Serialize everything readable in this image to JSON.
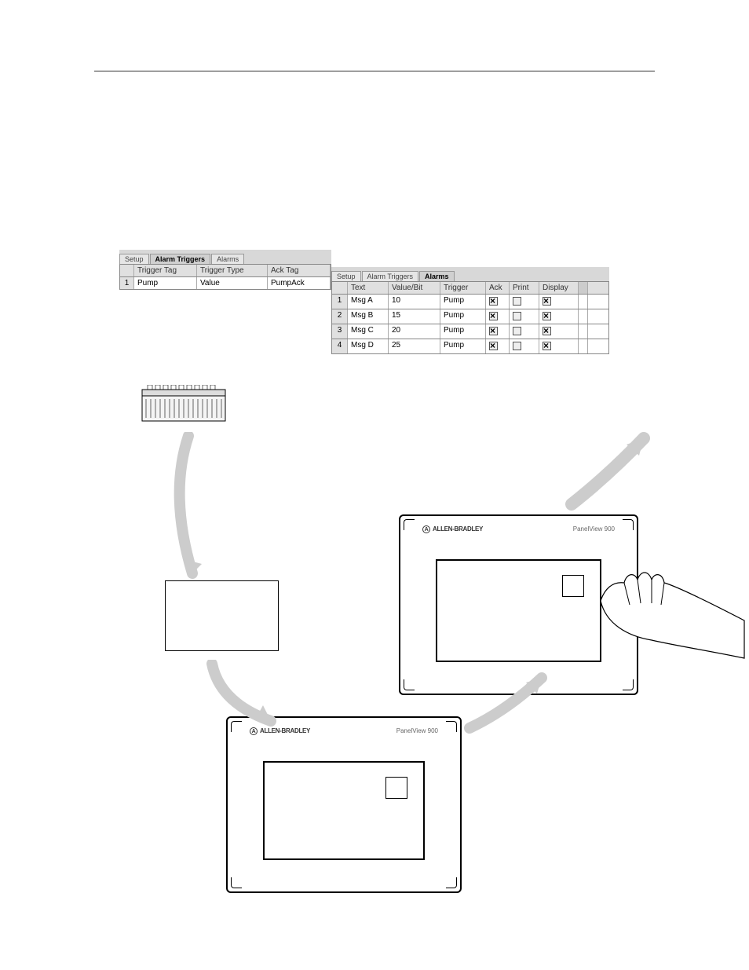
{
  "triggers_dialog": {
    "tabs": {
      "setup": "Setup",
      "triggers": "Alarm Triggers",
      "alarms": "Alarms"
    },
    "headers": {
      "tag": "Trigger Tag",
      "type": "Trigger Type",
      "ack": "Ack Tag"
    },
    "row": {
      "num": "1",
      "tag": "Pump",
      "type": "Value",
      "ack": "PumpAck"
    }
  },
  "alarms_dialog": {
    "tabs": {
      "setup": "Setup",
      "triggers": "Alarm Triggers",
      "alarms": "Alarms"
    },
    "headers": {
      "text": "Text",
      "val": "Value/Bit",
      "trig": "Trigger",
      "ack": "Ack",
      "print": "Print",
      "disp": "Display"
    },
    "rows": [
      {
        "n": "1",
        "text": "Msg A",
        "val": "10",
        "trig": "Pump",
        "ack": true,
        "print": false,
        "disp": true
      },
      {
        "n": "2",
        "text": "Msg B",
        "val": "15",
        "trig": "Pump",
        "ack": true,
        "print": false,
        "disp": true
      },
      {
        "n": "3",
        "text": "Msg C",
        "val": "20",
        "trig": "Pump",
        "ack": true,
        "print": false,
        "disp": true
      },
      {
        "n": "4",
        "text": "Msg D",
        "val": "25",
        "trig": "Pump",
        "ack": true,
        "print": false,
        "disp": true
      }
    ]
  },
  "panelview": {
    "brand": "ALLEN-BRADLEY",
    "model": "PanelView 900"
  },
  "colors": {
    "dialog_bg": "#d8d8d8",
    "header_bg": "#e0e0e0",
    "border": "#888888"
  }
}
